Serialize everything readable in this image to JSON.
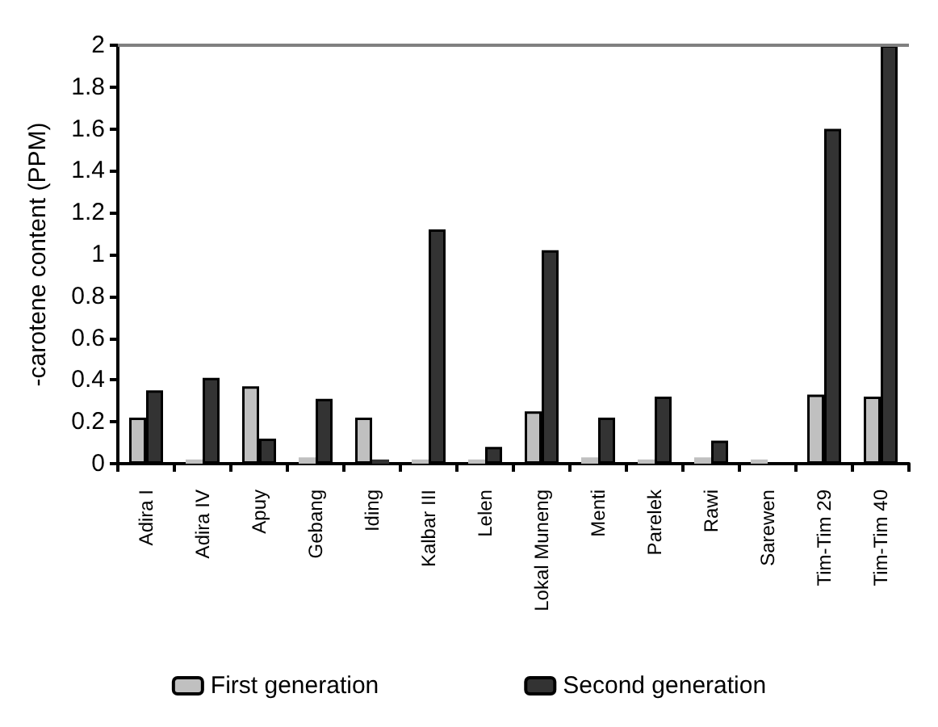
{
  "chart_data": {
    "type": "bar",
    "ylabel": "-carotene content (PPM)",
    "categories": [
      "Adira I",
      "Adira IV",
      "Apuy",
      "Gebang",
      "Iding",
      "Kalbar III",
      "Lelen",
      "Lokal Muneng",
      "Menti",
      "Parelek",
      "Rawi",
      "Sarewen",
      "Tim-Tim 29",
      "Tim-Tim 40"
    ],
    "series": [
      {
        "name": "First generation",
        "color": "#c0c0c0",
        "values": [
          0.22,
          0.02,
          0.37,
          0.03,
          0.22,
          0.02,
          0.02,
          0.25,
          0.03,
          0.02,
          0.03,
          0.02,
          0.33,
          0.32
        ]
      },
      {
        "name": "Second generation",
        "color": "#333333",
        "values": [
          0.35,
          0.41,
          0.12,
          0.31,
          0.02,
          1.12,
          0.08,
          1.02,
          0.22,
          0.32,
          0.11,
          0,
          1.6,
          2
        ]
      }
    ],
    "ylim": [
      0,
      2
    ],
    "yticks": [
      0,
      0.2,
      0.4,
      0.6,
      0.8,
      1,
      1.2,
      1.4,
      1.6,
      1.8,
      2
    ],
    "ref_lines": [
      {
        "axis": "y",
        "value": 2,
        "color": "#808080"
      }
    ],
    "legend": "bottom",
    "grid": false
  }
}
